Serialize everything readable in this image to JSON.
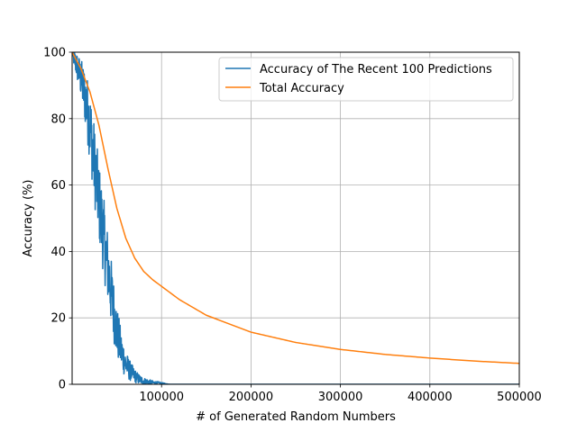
{
  "chart_data": {
    "type": "line",
    "xlabel": "# of Generated Random Numbers",
    "ylabel": "Accuracy (%)",
    "xlim": [
      0,
      500000
    ],
    "ylim": [
      0,
      100
    ],
    "xticks": [
      100000,
      200000,
      300000,
      400000,
      500000
    ],
    "yticks": [
      0,
      20,
      40,
      60,
      80,
      100
    ],
    "grid": true,
    "legend_position": "top-right",
    "series": [
      {
        "name": "Accuracy of The Recent 100 Predictions",
        "color": "#1f77b4",
        "style": "noisy",
        "x": [
          0,
          5000,
          10000,
          15000,
          20000,
          25000,
          30000,
          35000,
          40000,
          45000,
          50000,
          55000,
          60000,
          65000,
          70000,
          75000,
          80000,
          90000,
          100000,
          105000,
          110000,
          500000
        ],
        "y": [
          100,
          96,
          92,
          86,
          78,
          66,
          55,
          45,
          35,
          25,
          16,
          10,
          6,
          4,
          2.5,
          1.5,
          1,
          0.5,
          0.3,
          0.1,
          0,
          0
        ],
        "noise_amplitude": [
          2,
          4,
          6,
          9,
          11,
          12,
          12,
          12,
          11,
          10,
          8,
          6,
          4,
          3,
          2,
          1.5,
          1,
          0.6,
          0.3,
          0.1,
          0,
          0
        ]
      },
      {
        "name": "Total Accuracy",
        "color": "#ff7f0e",
        "style": "smooth",
        "x": [
          0,
          10000,
          20000,
          30000,
          40000,
          50000,
          60000,
          70000,
          80000,
          90000,
          100000,
          120000,
          150000,
          200000,
          250000,
          300000,
          350000,
          400000,
          450000,
          500000
        ],
        "y": [
          100,
          95,
          88,
          78,
          65,
          53,
          44,
          38,
          34,
          31.5,
          29.5,
          25.5,
          20.8,
          15.7,
          12.6,
          10.5,
          9.0,
          7.9,
          7.0,
          6.3
        ]
      }
    ]
  }
}
